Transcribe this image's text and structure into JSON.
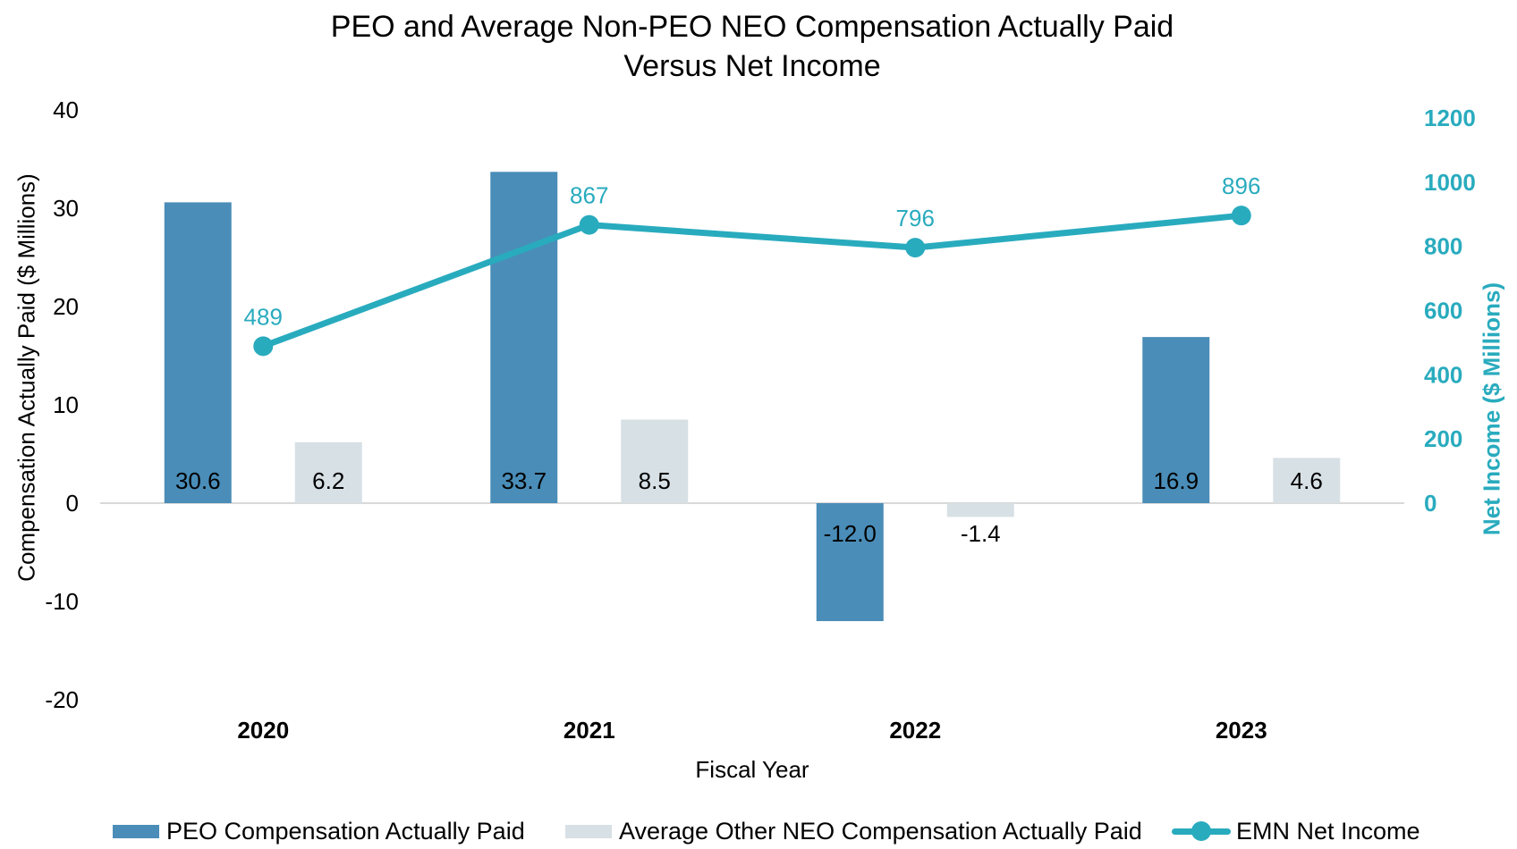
{
  "title": {
    "line1": "PEO and Average Non-PEO NEO Compensation Actually Paid",
    "line2": "Versus Net Income"
  },
  "chart_data": {
    "type": "bar",
    "subtype": "grouped bars with overlaid line on secondary axis",
    "categories": [
      "2020",
      "2021",
      "2022",
      "2023"
    ],
    "series": [
      {
        "name": "PEO Compensation Actually Paid",
        "type": "bar",
        "axis": "left",
        "color": "#4A8DB8",
        "values": [
          30.6,
          33.7,
          -12.0,
          16.9
        ]
      },
      {
        "name": "Average Other NEO Compensation Actually Paid",
        "type": "bar",
        "axis": "left",
        "color": "#D7E0E5",
        "values": [
          6.2,
          8.5,
          -1.4,
          4.6
        ]
      },
      {
        "name": "EMN Net Income",
        "type": "line",
        "axis": "right",
        "color": "#29ABBE",
        "values": [
          489,
          867,
          796,
          896
        ]
      }
    ],
    "left_axis": {
      "label": "Compensation Actually Paid ($ Millions)",
      "ticks": [
        40,
        30,
        20,
        10,
        0,
        -10,
        -20
      ],
      "range": [
        -20,
        40
      ],
      "color": "#000000"
    },
    "right_axis": {
      "label": "Net Income ($ Millions)",
      "ticks": [
        1200,
        1000,
        800,
        600,
        400,
        200,
        0
      ],
      "range": [
        0,
        1200
      ],
      "color": "#29ABBE"
    },
    "x_axis": {
      "label": "Fiscal Year"
    },
    "grid": "zero-baseline-only",
    "baseline_color": "#D9D9D9",
    "legend_position": "bottom"
  }
}
